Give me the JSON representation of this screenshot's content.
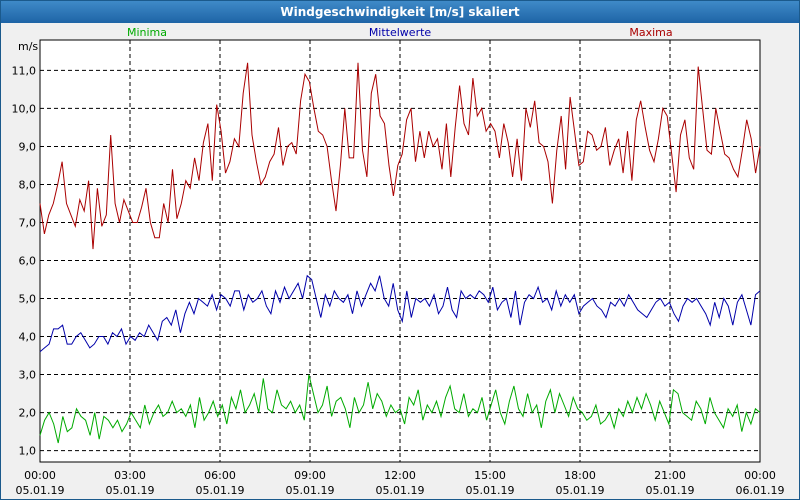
{
  "window": {
    "title": "Windgeschwindigkeit [m/s] skaliert"
  },
  "colors": {
    "minima": "#00aa00",
    "mittelwerte": "#0000aa",
    "maxima": "#aa0000",
    "grid": "#000000"
  },
  "chart_data": {
    "type": "line",
    "title": "Windgeschwindigkeit [m/s] skaliert",
    "ylabel": "m/s",
    "xlabel": "",
    "ylim": [
      0.7,
      11.8
    ],
    "xlim": [
      0,
      24
    ],
    "y_ticks": [
      "1,0",
      "2,0",
      "3,0",
      "4,0",
      "5,0",
      "6,0",
      "7,0",
      "8,0",
      "9,0",
      "10,0",
      "11,0"
    ],
    "x_ticks": [
      {
        "time": "00:00",
        "date": "05.01.19"
      },
      {
        "time": "03:00",
        "date": "05.01.19"
      },
      {
        "time": "06:00",
        "date": "05.01.19"
      },
      {
        "time": "09:00",
        "date": "05.01.19"
      },
      {
        "time": "12:00",
        "date": "05.01.19"
      },
      {
        "time": "15:00",
        "date": "05.01.19"
      },
      {
        "time": "18:00",
        "date": "05.01.19"
      },
      {
        "time": "21:00",
        "date": "05.01.19"
      },
      {
        "time": "00:00",
        "date": "06.01.19"
      }
    ],
    "series": [
      {
        "name": "Minima",
        "values": [
          1.4,
          1.8,
          2.0,
          1.7,
          1.2,
          1.9,
          1.5,
          1.6,
          2.1,
          1.9,
          1.8,
          1.4,
          2.0,
          1.3,
          1.9,
          1.8,
          1.6,
          1.8,
          1.5,
          1.7,
          2.0,
          1.8,
          1.6,
          2.2,
          1.7,
          2.0,
          2.2,
          1.9,
          2.0,
          2.3,
          2.0,
          2.1,
          1.9,
          2.2,
          1.6,
          2.4,
          1.8,
          2.0,
          2.3,
          1.9,
          2.2,
          1.7,
          2.4,
          2.1,
          2.6,
          2.0,
          2.2,
          2.5,
          2.0,
          2.9,
          2.1,
          2.0,
          2.6,
          2.2,
          2.1,
          2.3,
          2.0,
          2.2,
          1.8,
          3.0,
          2.5,
          2.0,
          2.2,
          2.7,
          1.9,
          2.3,
          2.4,
          2.1,
          1.6,
          2.4,
          2.0,
          2.2,
          2.8,
          2.1,
          2.5,
          2.3,
          1.9,
          2.2,
          2.0,
          2.1,
          1.7,
          2.4,
          2.2,
          2.6,
          1.8,
          2.2,
          2.0,
          2.3,
          1.9,
          2.4,
          2.7,
          2.1,
          2.0,
          2.5,
          1.9,
          2.1,
          2.0,
          2.4,
          1.8,
          2.2,
          2.6,
          2.0,
          1.7,
          2.3,
          2.7,
          2.1,
          1.9,
          2.5,
          2.0,
          2.2,
          1.6,
          2.3,
          2.6,
          2.0,
          2.5,
          2.2,
          1.9,
          2.4,
          2.1,
          2.0,
          1.8,
          1.9,
          2.2,
          1.7,
          1.8,
          2.0,
          1.6,
          2.1,
          1.9,
          2.3,
          2.0,
          2.4,
          2.1,
          2.5,
          2.2,
          1.8,
          2.3,
          2.0,
          1.7,
          2.6,
          2.5,
          2.0,
          1.9,
          1.8,
          2.3,
          2.1,
          1.7,
          2.4,
          2.0,
          1.8,
          1.6,
          2.1,
          1.9,
          2.2,
          1.5,
          2.0,
          1.7,
          2.1,
          2.0
        ]
      },
      {
        "name": "Mittelwerte",
        "values": [
          3.6,
          3.7,
          3.8,
          4.2,
          4.2,
          4.3,
          3.8,
          3.8,
          4.0,
          4.1,
          3.9,
          3.7,
          3.8,
          4.0,
          4.0,
          3.8,
          4.1,
          4.0,
          4.2,
          3.8,
          4.0,
          3.9,
          4.1,
          4.0,
          4.3,
          4.1,
          3.9,
          4.4,
          4.5,
          4.3,
          4.7,
          4.1,
          4.6,
          4.9,
          4.6,
          5.0,
          4.9,
          4.8,
          5.1,
          4.7,
          5.1,
          5.0,
          4.8,
          5.2,
          5.2,
          4.7,
          5.1,
          4.9,
          5.0,
          5.2,
          4.8,
          4.6,
          5.2,
          4.9,
          5.3,
          5.0,
          5.2,
          5.4,
          5.0,
          5.6,
          5.5,
          5.0,
          4.5,
          5.1,
          4.8,
          5.2,
          5.0,
          4.9,
          5.1,
          4.6,
          5.2,
          4.8,
          5.1,
          5.4,
          5.2,
          5.6,
          5.0,
          4.8,
          5.4,
          4.7,
          4.4,
          5.2,
          4.5,
          5.0,
          4.9,
          5.0,
          4.8,
          5.1,
          4.6,
          4.8,
          5.3,
          4.7,
          4.5,
          5.2,
          5.0,
          5.1,
          5.0,
          5.2,
          5.1,
          4.9,
          5.3,
          4.7,
          4.9,
          5.0,
          4.5,
          5.2,
          4.3,
          4.9,
          5.1,
          5.0,
          5.3,
          4.9,
          5.0,
          4.7,
          5.2,
          4.8,
          5.1,
          4.9,
          5.1,
          4.6,
          4.8,
          4.9,
          5.0,
          4.8,
          4.7,
          4.5,
          4.9,
          4.8,
          5.0,
          4.8,
          5.1,
          4.9,
          4.7,
          4.6,
          4.5,
          4.7,
          4.9,
          5.0,
          4.8,
          4.9,
          4.6,
          4.4,
          4.8,
          5.0,
          4.9,
          5.0,
          4.8,
          4.6,
          4.3,
          4.9,
          4.5,
          5.0,
          4.8,
          4.3,
          4.9,
          5.1,
          4.7,
          4.3,
          5.1,
          5.2
        ]
      },
      {
        "name": "Maxima",
        "values": [
          7.5,
          6.7,
          7.2,
          7.5,
          8.0,
          8.6,
          7.5,
          7.2,
          6.9,
          7.6,
          7.3,
          8.1,
          6.3,
          7.9,
          6.9,
          7.2,
          9.3,
          7.5,
          7.0,
          7.6,
          7.3,
          7.0,
          7.0,
          7.4,
          7.9,
          7.0,
          6.6,
          6.6,
          7.5,
          7.0,
          8.4,
          7.1,
          7.5,
          8.1,
          7.9,
          8.7,
          8.1,
          9.1,
          9.6,
          8.1,
          10.1,
          9.4,
          8.3,
          8.6,
          9.2,
          9.0,
          10.4,
          11.2,
          9.3,
          8.6,
          8.0,
          8.2,
          8.6,
          8.8,
          9.5,
          8.5,
          9.0,
          9.1,
          8.8,
          10.2,
          10.9,
          10.7,
          10.0,
          9.4,
          9.3,
          9.0,
          8.1,
          7.3,
          8.5,
          10.0,
          8.7,
          8.7,
          11.2,
          8.9,
          8.2,
          10.4,
          10.9,
          9.8,
          9.6,
          8.5,
          7.7,
          8.5,
          8.8,
          9.7,
          10.0,
          8.6,
          9.4,
          8.7,
          9.4,
          9.0,
          9.2,
          8.4,
          9.6,
          8.2,
          9.5,
          10.6,
          9.6,
          9.3,
          10.8,
          9.8,
          10.0,
          9.4,
          9.6,
          9.4,
          8.7,
          9.6,
          9.1,
          8.2,
          9.2,
          8.1,
          10.0,
          9.5,
          10.2,
          9.1,
          9.0,
          8.6,
          7.5,
          8.9,
          9.8,
          8.4,
          10.3,
          9.4,
          8.5,
          8.6,
          9.4,
          9.3,
          8.9,
          9.0,
          9.5,
          8.5,
          8.9,
          9.2,
          8.3,
          9.4,
          8.1,
          9.7,
          10.2,
          9.5,
          8.9,
          8.6,
          9.2,
          10.0,
          9.8,
          8.8,
          7.8,
          9.3,
          9.7,
          8.7,
          8.4,
          11.1,
          10.0,
          8.9,
          8.8,
          10.0,
          9.4,
          8.8,
          8.7,
          8.4,
          8.2,
          8.9,
          9.7,
          9.2,
          8.3,
          9.0
        ]
      }
    ],
    "legend": [
      "Minima",
      "Mittelwerte",
      "Maxima"
    ]
  }
}
